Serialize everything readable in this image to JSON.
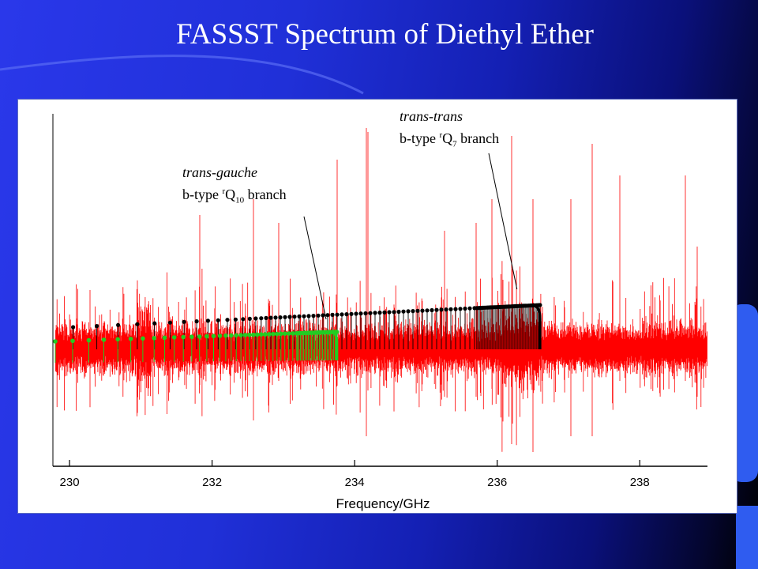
{
  "slide": {
    "title": "FASSST Spectrum of Diethyl Ether",
    "colors": {
      "background": "#1e2fd6",
      "panel": "#ffffff",
      "spectrum": "#ff0000",
      "trans_gauche_series": "#22cc22",
      "trans_trans_series": "#000000"
    }
  },
  "chart_data": {
    "type": "line",
    "xlabel": "Frequency/GHz",
    "ylabel": "",
    "xlim": [
      229.8,
      238.95
    ],
    "x_ticks": [
      230,
      232,
      234,
      236,
      238
    ],
    "grid": false,
    "series": [
      {
        "kind": "spectrum",
        "color": "#ff0000",
        "x_range": [
          229.8,
          238.95
        ]
      },
      {
        "kind": "prediction",
        "color": "#22cc22",
        "x_range": [
          229.8,
          233.75
        ],
        "dense_edge": 233.75
      },
      {
        "kind": "prediction",
        "color": "#000000",
        "x_range": [
          230.05,
          236.6
        ],
        "dense_edge": 236.6
      }
    ],
    "annotations": [
      {
        "target": "trans-gauche",
        "italic": "trans-gauche",
        "line2_prefix": "b-type ",
        "sup": "r",
        "q": "Q",
        "sub": "10",
        "suffix": " branch",
        "points_to_x": 233.6
      },
      {
        "target": "trans-trans",
        "italic": "trans-trans",
        "line2_prefix": "b-type ",
        "sup": "r",
        "q": "Q",
        "sub": "7",
        "suffix": " branch",
        "points_to_x": 236.3
      }
    ]
  }
}
